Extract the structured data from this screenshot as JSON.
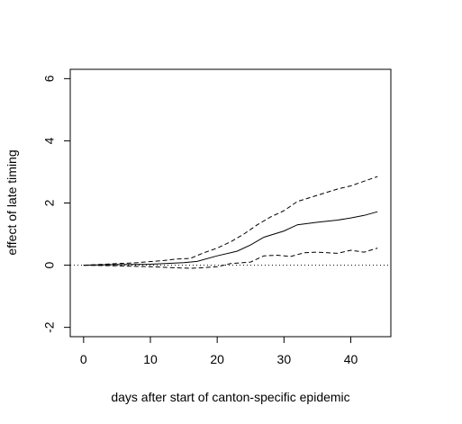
{
  "chart_data": {
    "type": "line",
    "title": "",
    "xlabel": "days after start of canton-specific epidemic",
    "ylabel": "effect of late timing",
    "xlim": [
      -2,
      46
    ],
    "ylim": [
      -2.3,
      6.3
    ],
    "xticks": [
      0,
      10,
      20,
      30,
      40
    ],
    "yticks": [
      -2,
      0,
      2,
      4,
      6
    ],
    "grid": false,
    "legend": "none",
    "reference_line": {
      "y": 0,
      "style": "dotted"
    },
    "series": [
      {
        "style": "solid",
        "x": [
          0,
          5,
          10,
          15,
          17,
          20,
          23,
          25,
          27,
          30,
          32,
          35,
          38,
          40,
          42,
          44
        ],
        "y": [
          0,
          0.02,
          0.03,
          0.08,
          0.12,
          0.3,
          0.45,
          0.65,
          0.9,
          1.1,
          1.3,
          1.38,
          1.45,
          1.52,
          1.6,
          1.72
        ]
      },
      {
        "style": "dashed",
        "x": [
          0,
          5,
          8,
          12,
          14,
          16,
          18,
          20,
          22,
          24,
          26,
          28,
          30,
          32,
          35,
          38,
          40,
          42,
          44
        ],
        "y": [
          0,
          0.05,
          0.08,
          0.15,
          0.2,
          0.22,
          0.4,
          0.55,
          0.75,
          1.0,
          1.3,
          1.55,
          1.75,
          2.05,
          2.25,
          2.45,
          2.55,
          2.7,
          2.85
        ]
      },
      {
        "style": "dashed",
        "x": [
          0,
          5,
          10,
          13,
          16,
          18,
          20,
          22,
          25,
          27,
          29,
          31,
          33,
          35,
          38,
          40,
          42,
          44
        ],
        "y": [
          0,
          -0.02,
          -0.05,
          -0.08,
          -0.1,
          -0.08,
          -0.05,
          0.05,
          0.1,
          0.3,
          0.32,
          0.28,
          0.4,
          0.42,
          0.38,
          0.48,
          0.42,
          0.55
        ]
      }
    ]
  }
}
